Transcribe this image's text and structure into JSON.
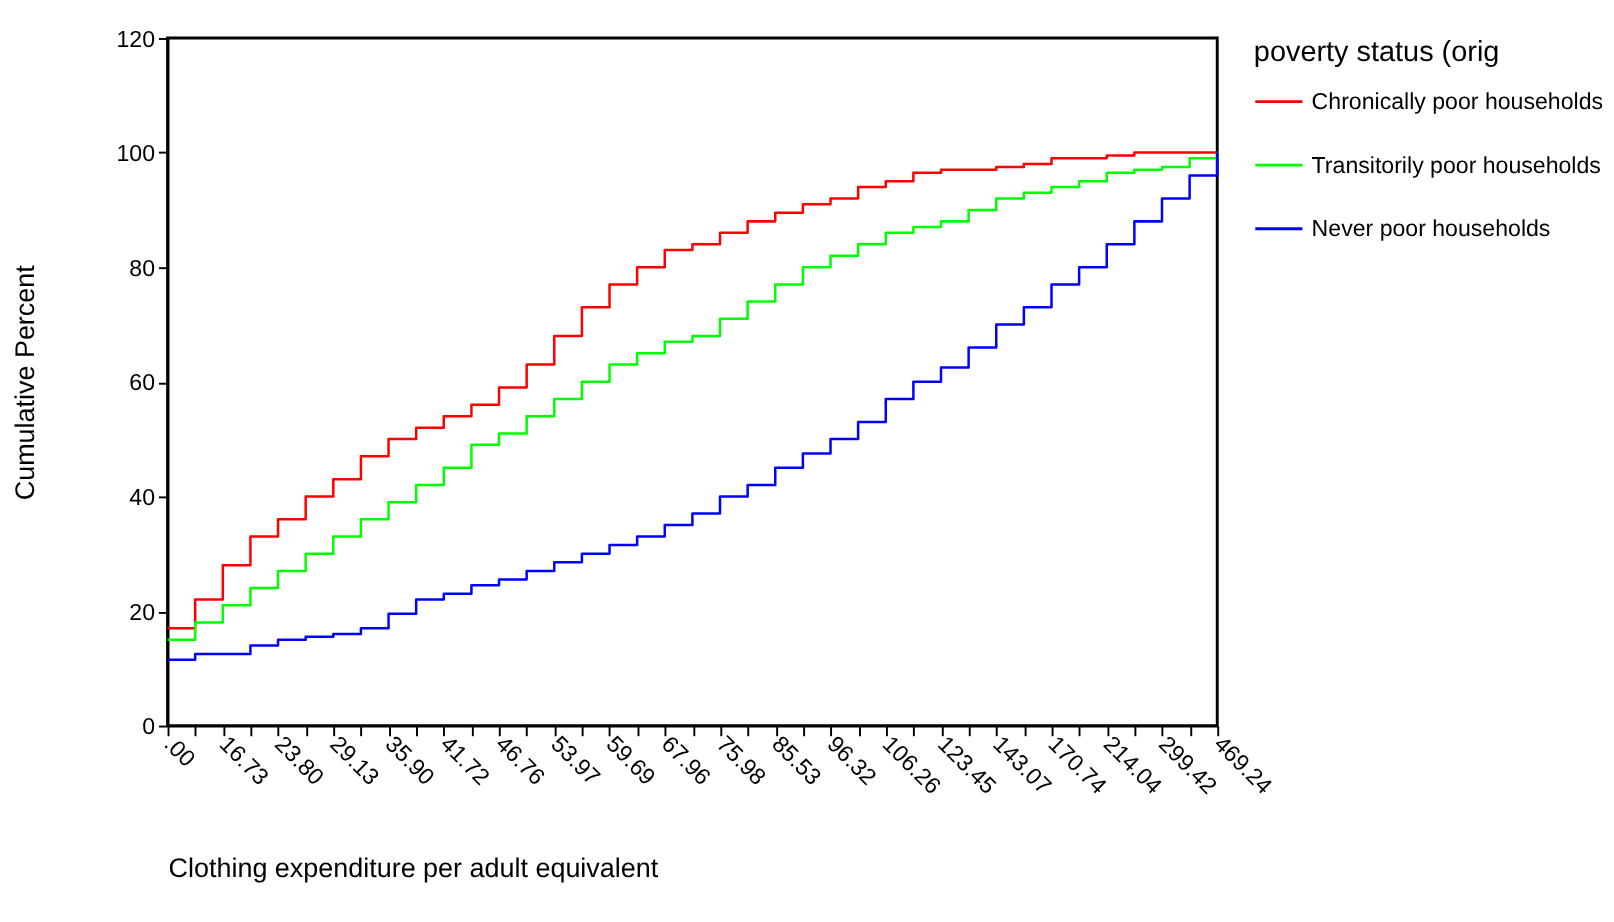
{
  "chart_data": {
    "type": "step",
    "xlabel": "Clothing expenditure per adult equivalent",
    "ylabel": "Cumulative Percent",
    "legend_title": "poverty status (orig",
    "categories": [
      ".00",
      null,
      "16.73",
      null,
      "23.80",
      null,
      "29.13",
      null,
      "35.90",
      null,
      "41.72",
      null,
      "46.76",
      null,
      "53.97",
      null,
      "59.69",
      null,
      "67.96",
      null,
      "75.98",
      null,
      "85.53",
      null,
      "96.32",
      null,
      "106.26",
      null,
      "123.45",
      null,
      "143.07",
      null,
      "170.74",
      null,
      "214.04",
      null,
      "299.42",
      null,
      "469.24"
    ],
    "ylim": [
      0,
      120
    ],
    "yticks": [
      0,
      20,
      40,
      60,
      80,
      100,
      120
    ],
    "grid": false,
    "legend": "right",
    "line_style": "solid",
    "series": [
      {
        "name": "Chronically poor households",
        "color": "#ff0000",
        "values": [
          17,
          22,
          28,
          33,
          36,
          40,
          43,
          47,
          50,
          52,
          54,
          56,
          59,
          63,
          68,
          73,
          77,
          80,
          83,
          84,
          86,
          88,
          89.5,
          91,
          92,
          94,
          95,
          96.5,
          97,
          97,
          97.5,
          98,
          99,
          99,
          99.5,
          100,
          100,
          100,
          100
        ]
      },
      {
        "name": "Transitorily poor households",
        "color": "#00ff00",
        "values": [
          15,
          18,
          21,
          24,
          27,
          30,
          33,
          36,
          39,
          42,
          45,
          49,
          51,
          54,
          57,
          60,
          63,
          65,
          67,
          68,
          71,
          74,
          77,
          80,
          82,
          84,
          86,
          87,
          88,
          90,
          92,
          93,
          94,
          95,
          96.5,
          97,
          97.5,
          99,
          100
        ]
      },
      {
        "name": "Never poor households",
        "color": "#0000ff",
        "values": [
          11.5,
          12.5,
          12.5,
          14,
          15,
          15.5,
          16,
          17,
          19.5,
          22,
          23,
          24.5,
          25.5,
          27,
          28.5,
          30,
          31.5,
          33,
          35,
          37,
          40,
          42,
          45,
          47.5,
          50,
          53,
          57,
          60,
          62.5,
          66,
          70,
          73,
          77,
          80,
          84,
          88,
          92,
          96,
          100
        ]
      }
    ]
  }
}
